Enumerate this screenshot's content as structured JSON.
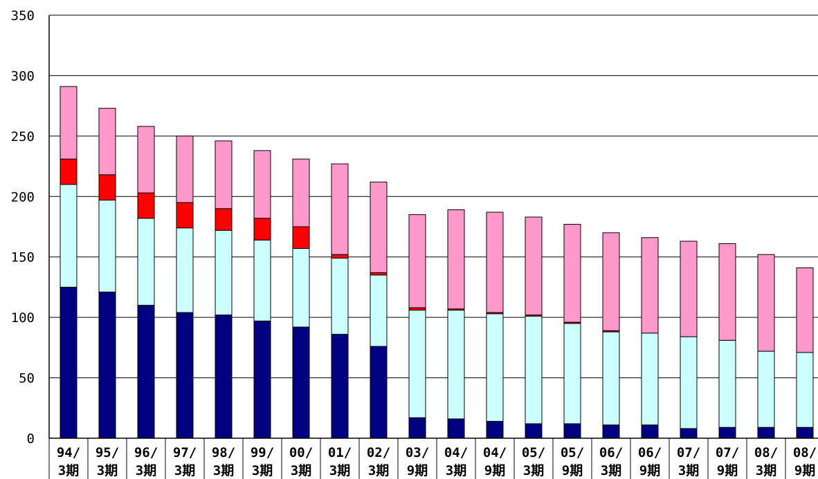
{
  "chart_data": {
    "type": "bar",
    "stacked": true,
    "title": "",
    "xlabel": "",
    "ylabel": "",
    "ylim": [
      0,
      350
    ],
    "yticks": [
      "0",
      "50",
      "100",
      "150",
      "200",
      "250",
      "300",
      "350"
    ],
    "grid": true,
    "categories": [
      {
        "line1": "94/",
        "line2": "3期"
      },
      {
        "line1": "95/",
        "line2": "3期"
      },
      {
        "line1": "96/",
        "line2": "3期"
      },
      {
        "line1": "97/",
        "line2": "3期"
      },
      {
        "line1": "98/",
        "line2": "3期"
      },
      {
        "line1": "99/",
        "line2": "3期"
      },
      {
        "line1": "00/",
        "line2": "3期"
      },
      {
        "line1": "01/",
        "line2": "3期"
      },
      {
        "line1": "02/",
        "line2": "3期"
      },
      {
        "line1": "03/",
        "line2": "9期"
      },
      {
        "line1": "04/",
        "line2": "3期"
      },
      {
        "line1": "04/",
        "line2": "9期"
      },
      {
        "line1": "05/",
        "line2": "3期"
      },
      {
        "line1": "05/",
        "line2": "9期"
      },
      {
        "line1": "06/",
        "line2": "3期"
      },
      {
        "line1": "06/",
        "line2": "9期"
      },
      {
        "line1": "07/",
        "line2": "3期"
      },
      {
        "line1": "07/",
        "line2": "9期"
      },
      {
        "line1": "08/",
        "line2": "3期"
      },
      {
        "line1": "08/",
        "line2": "9期"
      }
    ],
    "series": [
      {
        "color": "#000080",
        "values": [
          125,
          121,
          110,
          104,
          102,
          97,
          92,
          86,
          76,
          17,
          16,
          14,
          12,
          12,
          11,
          11,
          8,
          9,
          9,
          9
        ]
      },
      {
        "color": "#ccffff",
        "values": [
          85,
          76,
          72,
          70,
          70,
          67,
          65,
          63,
          59,
          89,
          90,
          89,
          89,
          83,
          77,
          76,
          76,
          72,
          63,
          62
        ]
      },
      {
        "color": "#ff0000",
        "values": [
          21,
          21,
          21,
          21,
          18,
          18,
          18,
          3,
          2,
          2,
          1,
          1,
          1,
          1,
          1,
          0,
          0,
          0,
          0,
          0
        ]
      },
      {
        "color": "#ff99cc",
        "values": [
          60,
          55,
          55,
          55,
          56,
          56,
          56,
          75,
          75,
          77,
          82,
          83,
          81,
          81,
          81,
          79,
          79,
          80,
          80,
          70
        ]
      }
    ]
  }
}
